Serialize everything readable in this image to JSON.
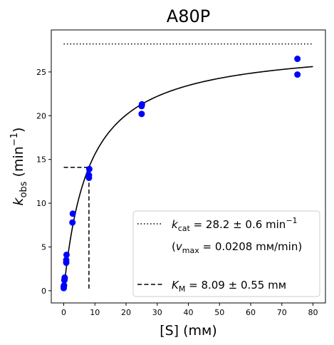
{
  "chart_data": {
    "type": "scatter",
    "title": "A80P",
    "xlabel": "[S] (mм)",
    "ylabel": "kobs (min−1)",
    "ylabel_parts": {
      "main": "k",
      "sub": "obs",
      "rest": " (min",
      "sup": "−1",
      "end": ")"
    },
    "xlim": [
      -4,
      84
    ],
    "ylim": [
      -1.4,
      29.8
    ],
    "x_ticks": [
      0,
      10,
      20,
      30,
      40,
      50,
      60,
      70,
      80
    ],
    "y_ticks": [
      0,
      5,
      10,
      15,
      20,
      25
    ],
    "grid": false,
    "legend_placement": "lower-right",
    "points": {
      "color": "#0000ff",
      "x": [
        0,
        0,
        0.1,
        0.2,
        0.3,
        0.3,
        0.8,
        0.8,
        0.9,
        2.8,
        2.9,
        8.1,
        8.1,
        8.2,
        25,
        25,
        25.1,
        75,
        75
      ],
      "y": [
        0.3,
        0.5,
        0.6,
        1.2,
        1.4,
        1.5,
        3.2,
        3.5,
        4.1,
        7.8,
        8.8,
        12.9,
        13.2,
        13.9,
        20.2,
        21.1,
        21.3,
        24.7,
        26.5
      ]
    },
    "fit": {
      "model": "michaelis-menten",
      "kcat": 28.2,
      "km": 8.09,
      "x_range": [
        0,
        80
      ],
      "color": "#000000"
    },
    "kcat_line": {
      "y": 28.2,
      "x_range": [
        0,
        80
      ],
      "style": "dotted"
    },
    "km_guide": {
      "x": 8.09,
      "y": 14.1,
      "x_start": 0,
      "style": "dashed"
    },
    "legend": [
      {
        "style": "dotted",
        "label_k": "k",
        "label_sub": "cat",
        "label_rest": " = 28.2 ± 0.6 min",
        "label_sup": "−1"
      },
      {
        "style": "none",
        "label_vmax": "(v",
        "label_vmax_sub": "max",
        "label_vmax_rest": " = 0.0208 mм/min)"
      },
      {
        "style": "dashed",
        "label_k": "K",
        "label_sub": "M",
        "label_rest": " = 8.09 ± 0.55 mм"
      }
    ]
  }
}
